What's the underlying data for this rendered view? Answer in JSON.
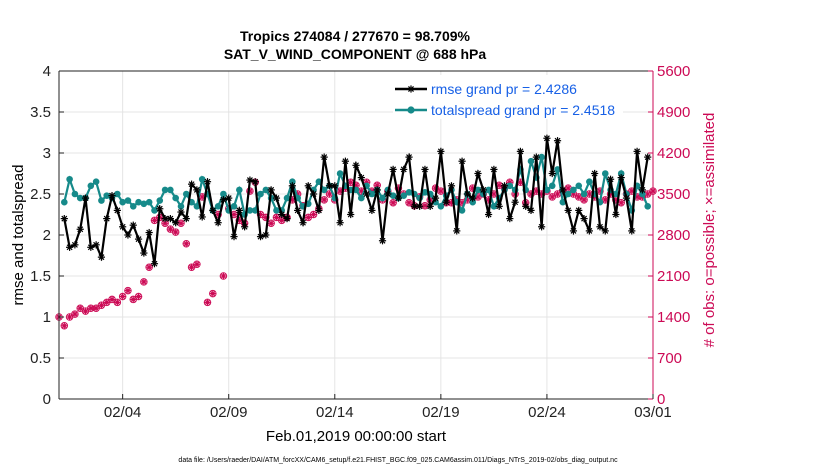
{
  "chart_data": {
    "type": "line",
    "title": "Tropics 274084 / 277670 = 98.709%",
    "subtitle": "SAT_V_WIND_COMPONENT @ 688 hPa",
    "xlabel": "Feb.01,2019 00:00:00 start",
    "ylabel": "rmse and totalspread",
    "ylabel_right": "# of obs: o=possible; ×=assimilated",
    "xlim": [
      1,
      29
    ],
    "ylim": [
      0,
      4
    ],
    "ylim_right": [
      0,
      5600
    ],
    "x_tick_values": [
      4,
      9,
      14,
      19,
      24,
      29
    ],
    "x_tick_labels": [
      "02/04",
      "02/09",
      "02/14",
      "02/19",
      "02/24",
      "03/01"
    ],
    "y_tick_labels": [
      "0",
      "0.5",
      "1",
      "1.5",
      "2",
      "2.5",
      "3",
      "3.5",
      "4"
    ],
    "y_right_tick_labels": [
      "0",
      "700",
      "1400",
      "2100",
      "2800",
      "3500",
      "4200",
      "4900",
      "5600"
    ],
    "footnote": "data file: /Users/raeder/DAI/ATM_forcXX/CAM6_setup/f.e21.FHIST_BGC.f09_025.CAM6assim.011/Diags_NTrS_2019-02/obs_diag_output.nc",
    "series": [
      {
        "name": "rmse grand pr = 2.4286",
        "color": "#000000",
        "axis": "left",
        "marker": "asterisk",
        "x": [
          1.25,
          1.5,
          1.75,
          2.0,
          2.25,
          2.5,
          2.75,
          3.0,
          3.25,
          3.5,
          3.75,
          4.0,
          4.25,
          4.5,
          4.75,
          5.0,
          5.25,
          5.5,
          5.75,
          6.0,
          6.25,
          6.5,
          6.75,
          7.0,
          7.25,
          7.5,
          7.75,
          8.0,
          8.25,
          8.5,
          8.75,
          9.0,
          9.25,
          9.5,
          9.75,
          10.0,
          10.25,
          10.5,
          10.75,
          11.0,
          11.25,
          11.5,
          11.75,
          12.0,
          12.25,
          12.5,
          12.75,
          13.0,
          13.25,
          13.5,
          13.75,
          14.0,
          14.25,
          14.5,
          14.75,
          15.0,
          15.25,
          15.5,
          15.75,
          16.0,
          16.25,
          16.5,
          16.75,
          17.0,
          17.25,
          17.5,
          17.75,
          18.0,
          18.25,
          18.5,
          18.75,
          19.0,
          19.25,
          19.5,
          19.75,
          20.0,
          20.25,
          20.5,
          20.75,
          21.0,
          21.25,
          21.5,
          21.75,
          22.0,
          22.25,
          22.5,
          22.75,
          23.0,
          23.25,
          23.5,
          23.75,
          24.0,
          24.25,
          24.5,
          24.75,
          25.0,
          25.25,
          25.5,
          25.75,
          26.0,
          26.25,
          26.5,
          26.75,
          27.0,
          27.25,
          27.5,
          27.75,
          28.0,
          28.25,
          28.5,
          28.75
        ],
        "y": [
          2.2,
          1.85,
          1.88,
          2.07,
          2.45,
          1.85,
          1.88,
          1.73,
          2.2,
          2.48,
          2.3,
          2.1,
          2.0,
          2.12,
          1.95,
          1.78,
          2.03,
          1.65,
          2.32,
          2.2,
          2.2,
          2.15,
          2.28,
          2.2,
          2.62,
          2.55,
          2.22,
          2.65,
          2.3,
          2.15,
          2.43,
          2.45,
          1.98,
          2.3,
          2.1,
          2.67,
          2.65,
          1.98,
          2.0,
          2.55,
          2.45,
          2.25,
          2.2,
          2.6,
          2.3,
          2.15,
          2.6,
          2.5,
          2.3,
          2.95,
          2.6,
          2.6,
          2.15,
          2.9,
          2.25,
          2.85,
          2.7,
          2.5,
          2.3,
          2.55,
          1.93,
          2.5,
          2.8,
          2.45,
          2.8,
          2.95,
          2.35,
          2.35,
          2.8,
          2.35,
          2.45,
          3.02,
          2.4,
          2.6,
          2.05,
          2.9,
          2.5,
          2.45,
          2.75,
          2.55,
          2.25,
          2.8,
          2.35,
          2.6,
          2.2,
          2.4,
          3.02,
          2.35,
          2.3,
          2.95,
          2.1,
          3.18,
          2.75,
          3.15,
          2.55,
          2.3,
          2.05,
          2.3,
          2.2,
          2.05,
          2.75,
          2.1,
          2.05,
          2.68,
          2.25,
          2.7,
          2.45,
          2.05,
          3.02,
          2.55,
          2.95
        ],
        "extra_points": [
          [
            28.0,
            2.72
          ],
          [
            28.25,
            2.62
          ],
          [
            28.5,
            2.58
          ]
        ]
      },
      {
        "name": "totalspread grand pr = 2.4518",
        "color": "#168a8a",
        "axis": "left",
        "marker": "dot",
        "x": [
          1.25,
          1.5,
          1.75,
          2.0,
          2.25,
          2.5,
          2.75,
          3.0,
          3.25,
          3.5,
          3.75,
          4.0,
          4.25,
          4.5,
          4.75,
          5.0,
          5.25,
          5.5,
          5.75,
          6.0,
          6.25,
          6.5,
          6.75,
          7.0,
          7.25,
          7.5,
          7.75,
          8.0,
          8.25,
          8.5,
          8.75,
          9.0,
          9.25,
          9.5,
          9.75,
          10.0,
          10.25,
          10.5,
          10.75,
          11.0,
          11.25,
          11.5,
          11.75,
          12.0,
          12.25,
          12.5,
          12.75,
          13.0,
          13.25,
          13.5,
          13.75,
          14.0,
          14.25,
          14.5,
          14.75,
          15.0,
          15.25,
          15.5,
          15.75,
          16.0,
          16.25,
          16.5,
          16.75,
          17.0,
          17.25,
          17.5,
          17.75,
          18.0,
          18.25,
          18.5,
          18.75,
          19.0,
          19.25,
          19.5,
          19.75,
          20.0,
          20.25,
          20.5,
          20.75,
          21.0,
          21.25,
          21.5,
          21.75,
          22.0,
          22.25,
          22.5,
          22.75,
          23.0,
          23.25,
          23.5,
          23.75,
          24.0,
          24.25,
          24.5,
          24.75,
          25.0,
          25.25,
          25.5,
          25.75,
          26.0,
          26.25,
          26.5,
          26.75,
          27.0,
          27.25,
          27.5,
          27.75,
          28.0,
          28.25,
          28.5,
          28.75
        ],
        "y": [
          2.4,
          2.68,
          2.5,
          2.45,
          2.45,
          2.6,
          2.65,
          2.42,
          2.48,
          2.45,
          2.5,
          2.4,
          2.42,
          2.35,
          2.4,
          2.38,
          2.4,
          2.3,
          2.42,
          2.55,
          2.55,
          2.45,
          2.35,
          2.5,
          2.4,
          2.35,
          2.68,
          2.5,
          2.3,
          2.35,
          2.5,
          2.3,
          2.35,
          2.55,
          2.25,
          2.3,
          2.3,
          2.5,
          2.55,
          2.45,
          2.3,
          2.3,
          2.45,
          2.65,
          2.45,
          2.35,
          2.38,
          2.55,
          2.65,
          2.55,
          2.6,
          2.45,
          2.75,
          2.6,
          2.55,
          2.55,
          2.45,
          2.6,
          2.5,
          2.55,
          2.45,
          2.55,
          2.48,
          2.45,
          2.48,
          2.52,
          2.5,
          2.45,
          2.52,
          2.5,
          2.4,
          2.35,
          2.48,
          2.55,
          2.4,
          2.3,
          2.5,
          2.4,
          2.55,
          2.5,
          2.55,
          2.35,
          2.45,
          2.55,
          2.6,
          2.55,
          2.8,
          2.55,
          2.9,
          2.7,
          2.95,
          2.55,
          2.6,
          2.8,
          2.4,
          2.5,
          2.55,
          2.6,
          2.5,
          2.65,
          2.5,
          2.4,
          2.75,
          2.55,
          2.5,
          2.75,
          2.5,
          2.3,
          2.6,
          2.5,
          2.35
        ]
      },
      {
        "name": "# obs possible / assimilated",
        "color": "#cc0a55",
        "axis": "right",
        "marker": "circle-x",
        "x": [
          1.0,
          1.25,
          1.5,
          1.75,
          2.0,
          2.25,
          2.5,
          2.75,
          3.0,
          3.25,
          3.5,
          3.75,
          4.0,
          4.25,
          4.5,
          4.75,
          5.0,
          5.25,
          5.5,
          5.75,
          6.0,
          6.25,
          6.5,
          6.75,
          7.0,
          7.25,
          7.5,
          7.75,
          8.0,
          8.25,
          8.5,
          8.75,
          9.0,
          9.25,
          9.5,
          9.75,
          10.0,
          10.25,
          10.5,
          10.75,
          11.0,
          11.25,
          11.5,
          11.75,
          12.0,
          12.25,
          12.5,
          12.75,
          13.0,
          13.25,
          13.5,
          13.75,
          14.0,
          14.25,
          14.5,
          14.75,
          15.0,
          15.25,
          15.5,
          15.75,
          16.0,
          16.25,
          16.5,
          16.75,
          17.0,
          17.25,
          17.5,
          17.75,
          18.0,
          18.25,
          18.5,
          18.75,
          19.0,
          19.25,
          19.5,
          19.75,
          20.0,
          20.25,
          20.5,
          20.75,
          21.0,
          21.25,
          21.5,
          21.75,
          22.0,
          22.25,
          22.5,
          22.75,
          23.0,
          23.25,
          23.5,
          23.75,
          24.0,
          24.25,
          24.5,
          24.75,
          25.0,
          25.25,
          25.5,
          25.75,
          26.0,
          26.25,
          26.5,
          26.75,
          27.0,
          27.25,
          27.5,
          27.75,
          28.0,
          28.25,
          28.5,
          28.75,
          29.0
        ],
        "y": [
          1400,
          1250,
          1400,
          1450,
          1550,
          1500,
          1550,
          1550,
          1600,
          1650,
          1700,
          1650,
          1750,
          1850,
          1700,
          1750,
          2000,
          2250,
          3050,
          3100,
          3000,
          2900,
          2850,
          3000,
          2650,
          2250,
          2300,
          3450,
          1650,
          1800,
          3150,
          2100,
          3250,
          3150,
          3050,
          3000,
          3550,
          3700,
          3150,
          3100,
          3000,
          3100,
          3050,
          3100,
          3400,
          3500,
          3300,
          3100,
          3150,
          3250,
          3400,
          3500,
          3400,
          3550,
          3600,
          3700,
          3650,
          3550,
          3700,
          3550,
          3650,
          3400,
          3550,
          3350,
          3600,
          3500,
          3350,
          3300,
          3450,
          3300,
          3400,
          3600,
          3550,
          3350,
          3350,
          3400,
          3350,
          3400,
          3600,
          3450,
          3500,
          3400,
          3500,
          3650,
          3600,
          3700,
          3500,
          3700,
          3350,
          3500,
          3550,
          3500,
          3550,
          3450,
          3500,
          3550,
          3600,
          3500,
          3450,
          3400,
          3500,
          3450,
          3550,
          3400,
          3500,
          3400,
          3350,
          3500,
          3550,
          3450,
          3450,
          3500,
          3550
        ],
        "y_lower": [
          1400,
          1250,
          1400,
          1450,
          1550,
          1500,
          1550,
          1550,
          1600,
          1650,
          1700,
          1650,
          1750,
          1850,
          1700,
          1750,
          2000,
          2250,
          3050,
          3100,
          3000,
          2900,
          2850,
          3000,
          2650,
          2250,
          2300,
          3450,
          1650,
          1800,
          3150,
          2100,
          3250,
          3150,
          3050,
          3000,
          3550,
          3700,
          3150,
          3100,
          3000,
          3100,
          3050,
          3100,
          3400,
          3500,
          3300,
          3100,
          3150,
          3250,
          3400,
          3500,
          3400,
          3550,
          3600,
          3700,
          3650,
          3550,
          3700,
          3550,
          3650,
          3400,
          3550,
          3350,
          3600,
          3500,
          3350,
          3300,
          3450,
          3300,
          3400,
          3600,
          3550,
          3350,
          3350,
          3400,
          3350,
          3400,
          3600,
          3450,
          3500,
          3400,
          3500,
          3650,
          3600,
          3700,
          3500,
          3700,
          3350,
          3500,
          3550,
          3500,
          3550,
          3450,
          3500,
          3550,
          3600,
          3500,
          3450,
          3400,
          3500,
          3450,
          3550,
          3400,
          3500,
          3400,
          3350,
          3500,
          3550,
          3450,
          3450,
          3500,
          3550
        ]
      }
    ]
  }
}
